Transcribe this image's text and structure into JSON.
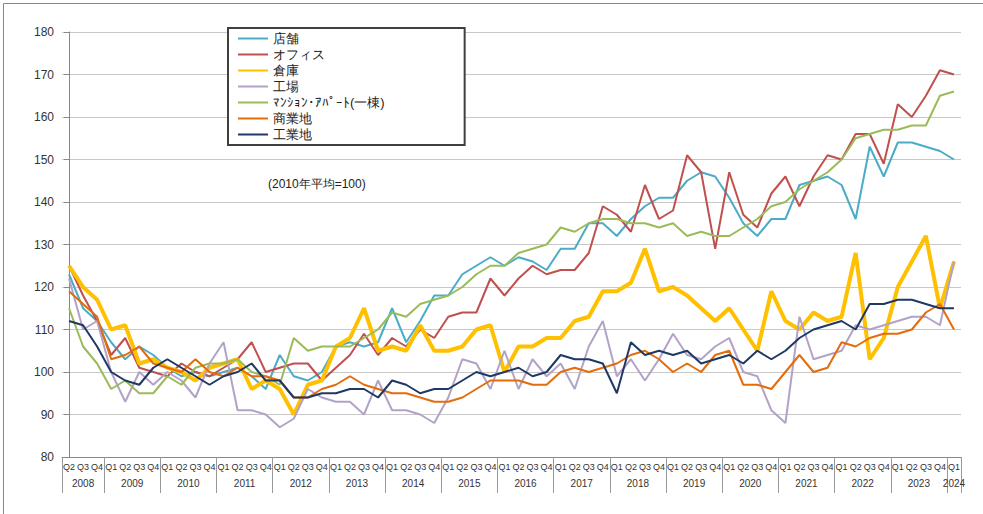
{
  "chart_data": {
    "type": "line",
    "categories": [
      "Q2",
      "Q3",
      "Q4",
      "Q1",
      "Q2",
      "Q3",
      "Q4",
      "Q1",
      "Q2",
      "Q3",
      "Q4",
      "Q1",
      "Q2",
      "Q3",
      "Q4",
      "Q1",
      "Q2",
      "Q3",
      "Q4",
      "Q1",
      "Q2",
      "Q3",
      "Q4",
      "Q1",
      "Q2",
      "Q3",
      "Q4",
      "Q1",
      "Q2",
      "Q3",
      "Q4",
      "Q1",
      "Q2",
      "Q3",
      "Q4",
      "Q1",
      "Q2",
      "Q3",
      "Q4",
      "Q1",
      "Q2",
      "Q3",
      "Q4",
      "Q1",
      "Q2",
      "Q3",
      "Q4",
      "Q1",
      "Q2",
      "Q3",
      "Q4",
      "Q1",
      "Q2",
      "Q3",
      "Q4",
      "Q1",
      "Q2",
      "Q3",
      "Q4",
      "Q1",
      "Q2",
      "Q3",
      "Q4",
      "Q1"
    ],
    "year_labels": [
      "2008",
      "2009",
      "2010",
      "2011",
      "2012",
      "2013",
      "2014",
      "2015",
      "2016",
      "2017",
      "2018",
      "2019",
      "2020",
      "2021",
      "2022",
      "2023",
      "2024"
    ],
    "annotations": [
      "(2010年平均=100)"
    ],
    "ylim": [
      80,
      180
    ],
    "yticks": [
      80,
      90,
      100,
      110,
      120,
      130,
      140,
      150,
      160,
      170,
      180
    ],
    "grid": true,
    "legend": "upper left",
    "series": [
      {
        "name": "店舗",
        "color": "#4bacc6",
        "values": [
          123,
          115,
          112,
          107,
          103,
          106,
          104,
          101,
          99,
          100,
          99,
          100,
          101,
          99,
          96,
          104,
          99,
          98,
          100,
          106,
          107,
          106,
          107,
          115,
          107,
          112,
          118,
          118,
          123,
          125,
          127,
          125,
          127,
          126,
          124,
          129,
          129,
          135,
          135,
          132,
          136,
          139,
          141,
          141,
          145,
          147,
          146,
          141,
          135,
          132,
          136,
          136,
          144,
          145,
          146,
          144,
          136,
          153,
          146,
          154,
          154,
          153,
          152,
          150
        ]
      },
      {
        "name": "オフィス",
        "color": "#c0504d",
        "values": [
          125,
          118,
          112,
          104,
          108,
          101,
          100,
          99,
          102,
          100,
          99,
          101,
          103,
          107,
          100,
          101,
          102,
          102,
          98,
          101,
          104,
          109,
          104,
          108,
          106,
          110,
          108,
          113,
          114,
          114,
          122,
          118,
          122,
          125,
          123,
          124,
          124,
          128,
          139,
          137,
          133,
          144,
          136,
          138,
          151,
          147,
          129,
          147,
          137,
          134,
          142,
          146,
          139,
          146,
          151,
          150,
          156,
          156,
          149,
          163,
          160,
          165,
          171,
          170
        ]
      },
      {
        "name": "倉庫",
        "color": "#ffc000",
        "line_style": "bold",
        "values": [
          125,
          120,
          117,
          110,
          111,
          102,
          103,
          101,
          100,
          98,
          101,
          102,
          103,
          96,
          98,
          96,
          90,
          97,
          98,
          106,
          108,
          115,
          105,
          106,
          105,
          111,
          105,
          105,
          106,
          110,
          111,
          100,
          106,
          106,
          108,
          108,
          112,
          113,
          119,
          119,
          121,
          129,
          119,
          120,
          118,
          115,
          112,
          115,
          110,
          105,
          119,
          112,
          110,
          114,
          112,
          113,
          128,
          103,
          108,
          120,
          126,
          132,
          115,
          126
        ]
      },
      {
        "name": "工場",
        "color": "#b3a2c7",
        "values": [
          122,
          110,
          112,
          100,
          93,
          100,
          97,
          100,
          98,
          94,
          102,
          107,
          91,
          91,
          90,
          87,
          89,
          96,
          94,
          93,
          93,
          90,
          98,
          91,
          91,
          90,
          88,
          94,
          103,
          102,
          96,
          105,
          96,
          103,
          99,
          102,
          96,
          106,
          112,
          99,
          103,
          98,
          103,
          109,
          104,
          103,
          106,
          108,
          100,
          99,
          91,
          88,
          113,
          103,
          104,
          105,
          111,
          110,
          111,
          112,
          113,
          113,
          111,
          126
        ]
      },
      {
        "name": "ﾏﾝｼｮﾝ･ｱﾊﾟｰﾄ(一棟)",
        "color": "#9bbb59",
        "values": [
          115,
          106,
          102,
          96,
          98,
          95,
          95,
          99,
          97,
          101,
          102,
          102,
          103,
          100,
          99,
          97,
          108,
          105,
          106,
          106,
          106,
          108,
          110,
          114,
          113,
          116,
          117,
          118,
          120,
          123,
          125,
          125,
          128,
          129,
          130,
          134,
          133,
          135,
          136,
          136,
          135,
          135,
          134,
          135,
          132,
          133,
          132,
          132,
          134,
          136,
          139,
          140,
          143,
          145,
          147,
          150,
          155,
          156,
          157,
          157,
          158,
          158,
          165,
          166
        ]
      },
      {
        "name": "商業地",
        "color": "#e46c0a",
        "values": [
          119,
          116,
          113,
          103,
          104,
          106,
          102,
          101,
          100,
          103,
          100,
          99,
          101,
          99,
          99,
          98,
          94,
          94,
          96,
          97,
          99,
          97,
          96,
          95,
          95,
          94,
          93,
          93,
          94,
          96,
          98,
          98,
          98,
          97,
          97,
          100,
          101,
          100,
          101,
          102,
          104,
          105,
          103,
          100,
          102,
          100,
          104,
          105,
          97,
          97,
          96,
          100,
          104,
          100,
          101,
          107,
          106,
          108,
          109,
          109,
          110,
          114,
          116,
          110
        ]
      },
      {
        "name": "工業地",
        "color": "#1f3864",
        "values": [
          112,
          111,
          106,
          100,
          98,
          97,
          101,
          103,
          101,
          99,
          97,
          99,
          100,
          102,
          98,
          98,
          94,
          94,
          95,
          95,
          96,
          96,
          94,
          98,
          97,
          95,
          96,
          96,
          98,
          100,
          99,
          100,
          101,
          99,
          100,
          104,
          103,
          103,
          102,
          95,
          107,
          104,
          105,
          104,
          105,
          102,
          103,
          104,
          102,
          105,
          103,
          105,
          108,
          110,
          111,
          112,
          110,
          116,
          116,
          117,
          117,
          116,
          115,
          115
        ]
      }
    ]
  }
}
